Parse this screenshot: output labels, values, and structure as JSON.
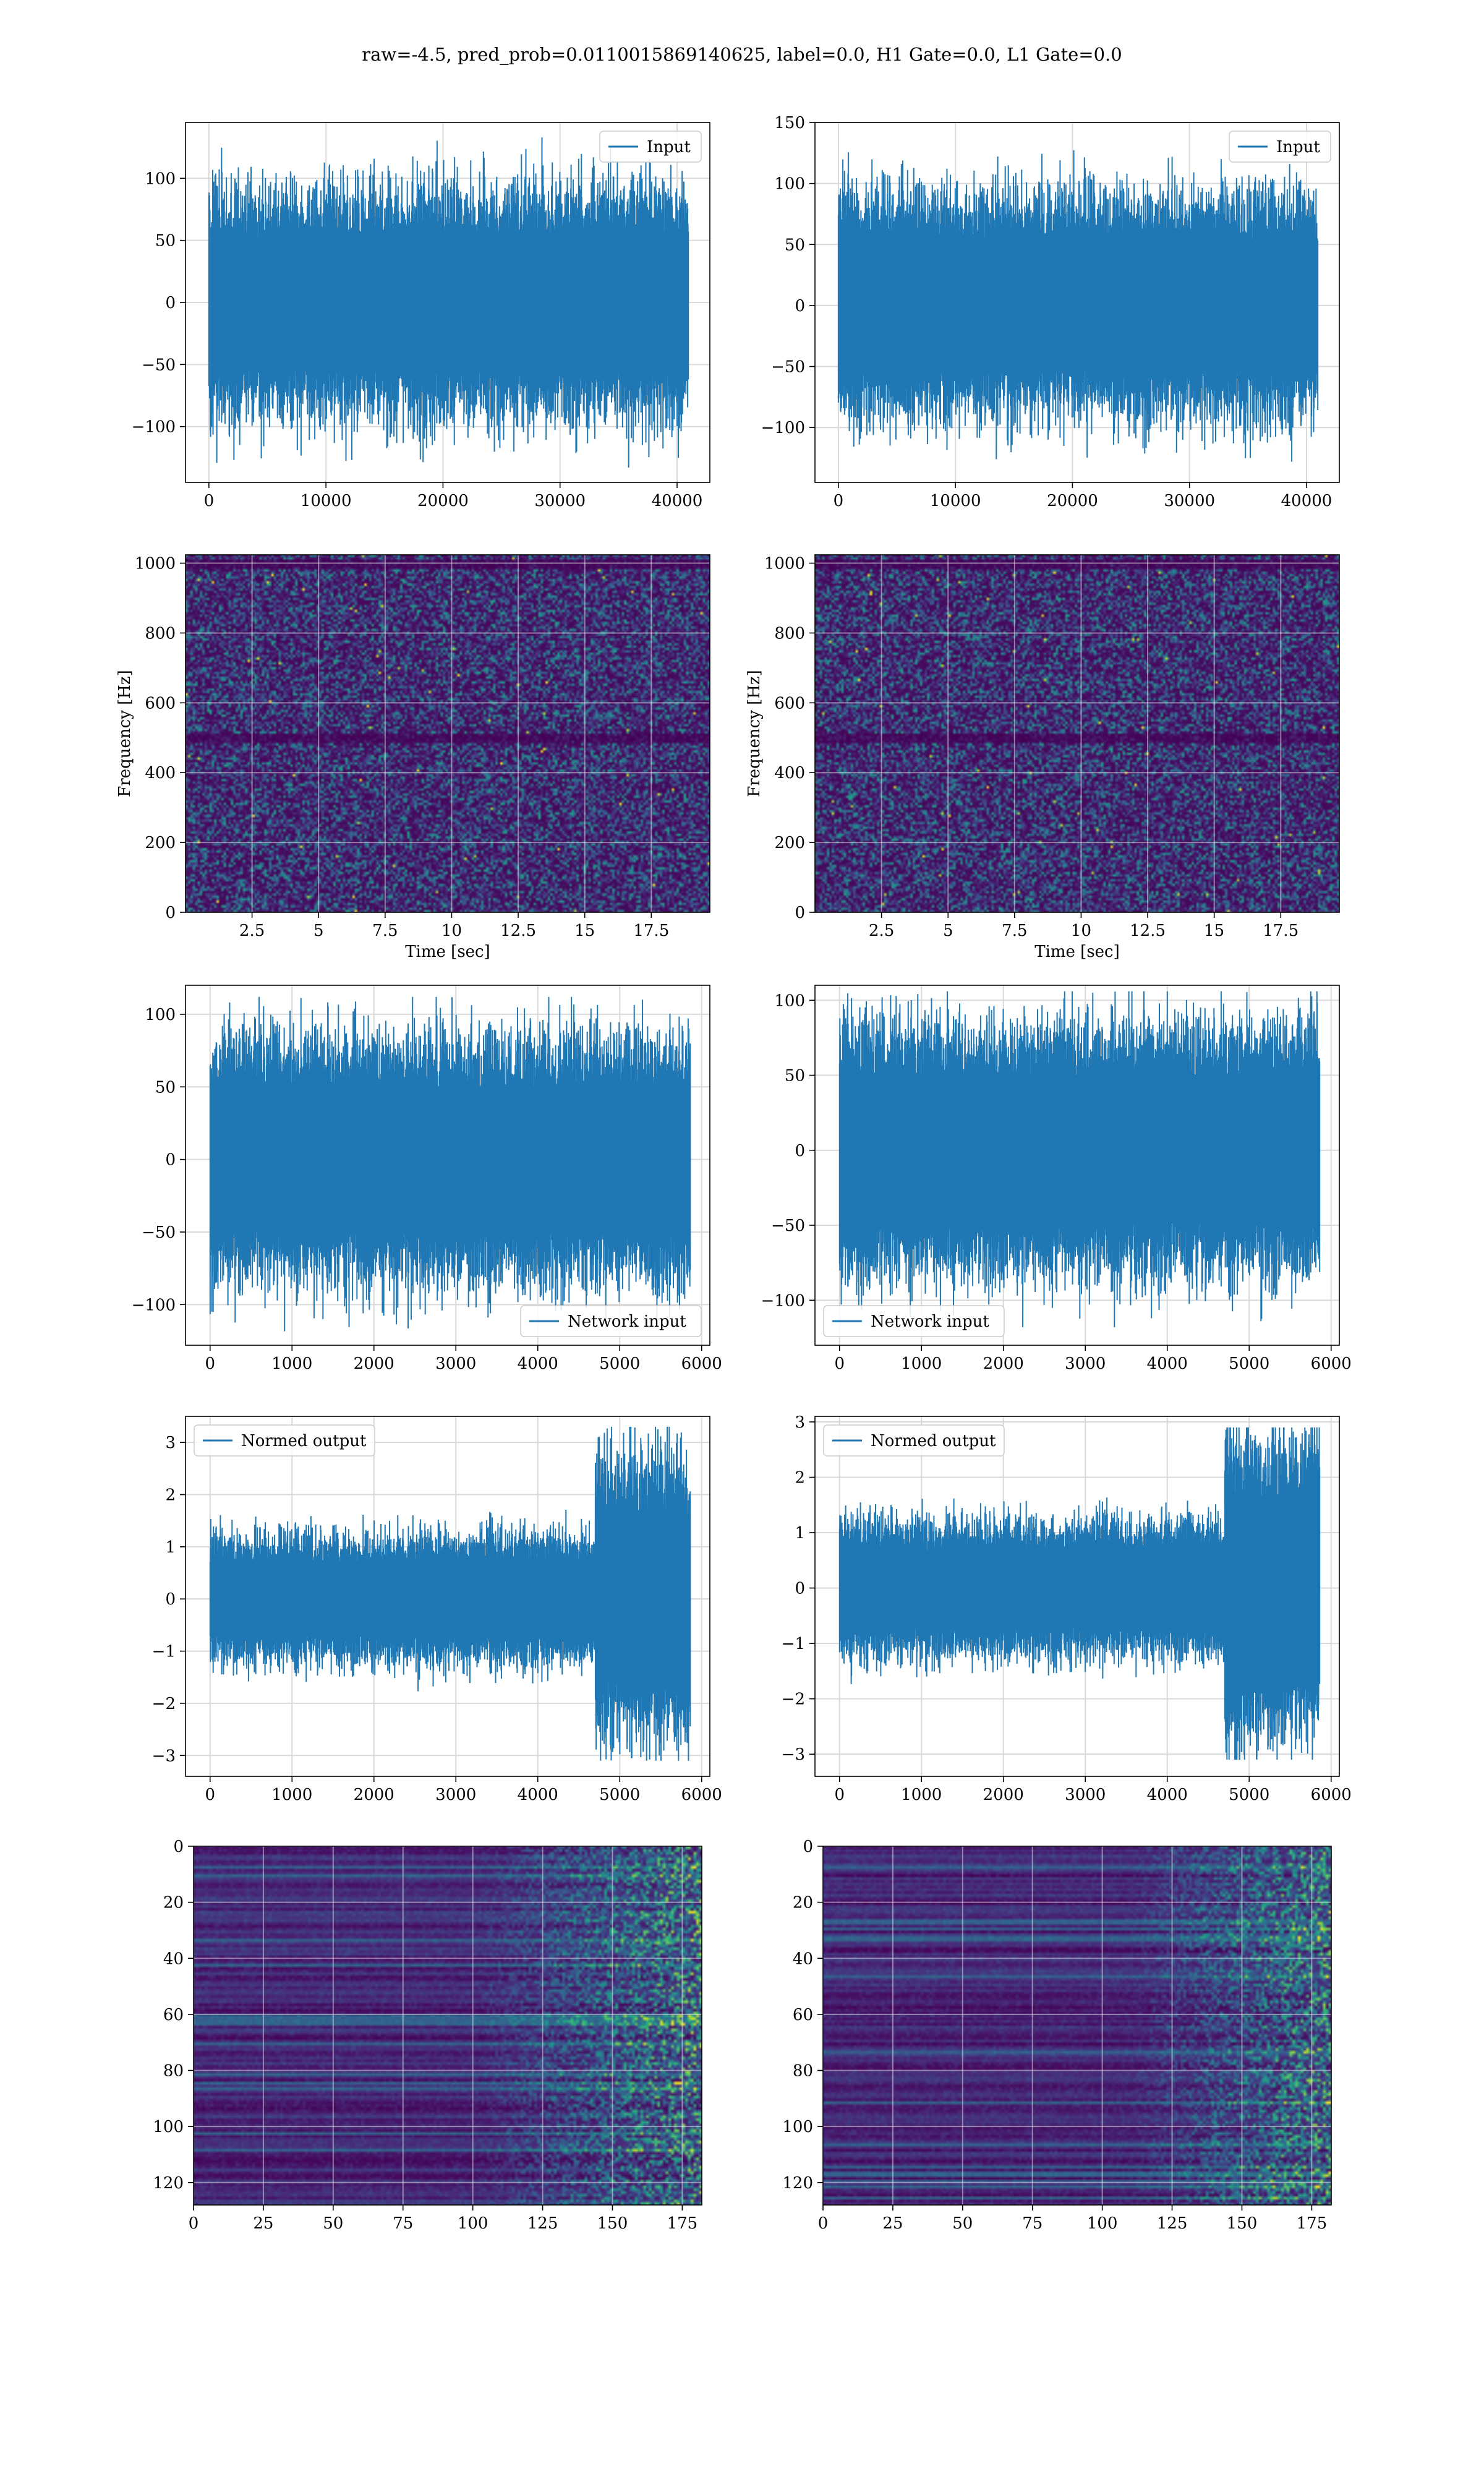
{
  "figure": {
    "suptitle": "raw=-4.5, pred_prob=0.0110015869140625, label=0.0, H1 Gate=0.0, L1 Gate=0.0"
  },
  "colors": {
    "line": "#1f77b4",
    "grid": "#d9d9d9",
    "axes_frame": "#000000",
    "viridis_dark": "#440154",
    "viridis_blue": "#31688e",
    "viridis_teal": "#35b779",
    "viridis_yellow": "#fde725"
  },
  "chart_data": [
    {
      "id": "input-h1",
      "type": "line",
      "legend": [
        "Input"
      ],
      "legend_loc": "upper right",
      "xlim": [
        -2000,
        42800
      ],
      "ylim": [
        -145,
        145
      ],
      "xticks": [
        0,
        10000,
        20000,
        30000,
        40000
      ],
      "yticks": [
        -100,
        -50,
        0,
        50,
        100
      ],
      "grid": true,
      "series": [
        {
          "name": "Input",
          "n_points": 40960,
          "x_range": [
            0,
            40960
          ],
          "envelope": {
            "typical": [
              -60,
              60
            ],
            "min": -133,
            "max": 133
          }
        }
      ]
    },
    {
      "id": "input-l1",
      "type": "line",
      "legend": [
        "Input"
      ],
      "legend_loc": "upper right",
      "xlim": [
        -2000,
        42800
      ],
      "ylim": [
        -145,
        150
      ],
      "xticks": [
        0,
        10000,
        20000,
        30000,
        40000
      ],
      "yticks": [
        -100,
        -50,
        0,
        50,
        100,
        150
      ],
      "grid": true,
      "series": [
        {
          "name": "Input",
          "n_points": 40960,
          "x_range": [
            0,
            40960
          ],
          "envelope": {
            "typical": [
              -60,
              60
            ],
            "min": -128,
            "max": 138
          }
        }
      ]
    },
    {
      "id": "spectrogram-h1",
      "type": "heatmap",
      "xlabel": "Time [sec]",
      "ylabel": "Frequency [Hz]",
      "xlim": [
        0,
        19.7
      ],
      "ylim": [
        0,
        1024
      ],
      "xticks": [
        2.5,
        5.0,
        7.5,
        10.0,
        12.5,
        15.0,
        17.5
      ],
      "yticks": [
        0,
        200,
        400,
        600,
        800,
        1000
      ],
      "colormap": "viridis",
      "grid": true,
      "dark_bands_hz": [
        500,
        1000
      ]
    },
    {
      "id": "spectrogram-l1",
      "type": "heatmap",
      "xlabel": "Time [sec]",
      "ylabel": "Frequency [Hz]",
      "xlim": [
        0,
        19.7
      ],
      "ylim": [
        0,
        1024
      ],
      "xticks": [
        2.5,
        5.0,
        7.5,
        10.0,
        12.5,
        15.0,
        17.5
      ],
      "yticks": [
        0,
        200,
        400,
        600,
        800,
        1000
      ],
      "colormap": "viridis",
      "grid": true,
      "dark_bands_hz": [
        500,
        1000
      ]
    },
    {
      "id": "network-input-h1",
      "type": "line",
      "legend": [
        "Network input"
      ],
      "legend_loc": "lower right",
      "xlim": [
        -300,
        6100
      ],
      "ylim": [
        -128,
        120
      ],
      "xticks": [
        0,
        1000,
        2000,
        3000,
        4000,
        5000,
        6000
      ],
      "yticks": [
        -100,
        -50,
        0,
        50,
        100
      ],
      "grid": true,
      "series": [
        {
          "name": "Network input",
          "n_points": 5860,
          "x_range": [
            0,
            5860
          ],
          "envelope": {
            "typical": [
              -55,
              55
            ],
            "min": -122,
            "max": 112
          }
        }
      ]
    },
    {
      "id": "network-input-l1",
      "type": "line",
      "legend": [
        "Network input"
      ],
      "legend_loc": "lower left",
      "xlim": [
        -300,
        6100
      ],
      "ylim": [
        -130,
        110
      ],
      "xticks": [
        0,
        1000,
        2000,
        3000,
        4000,
        5000,
        6000
      ],
      "yticks": [
        -100,
        -50,
        0,
        50,
        100
      ],
      "grid": true,
      "series": [
        {
          "name": "Network input",
          "n_points": 5860,
          "x_range": [
            0,
            5860
          ],
          "envelope": {
            "typical": [
              -55,
              55
            ],
            "min": -118,
            "max": 106
          }
        }
      ]
    },
    {
      "id": "normed-output-h1",
      "type": "line",
      "legend": [
        "Normed output"
      ],
      "legend_loc": "upper left",
      "xlim": [
        -300,
        6100
      ],
      "ylim": [
        -3.4,
        3.5
      ],
      "xticks": [
        0,
        1000,
        2000,
        3000,
        4000,
        5000,
        6000
      ],
      "yticks": [
        -3,
        -2,
        -1,
        0,
        1,
        2,
        3
      ],
      "grid": true,
      "series": [
        {
          "name": "Normed output",
          "n_points": 5860,
          "x_range": [
            0,
            5860
          ],
          "envelope": {
            "typical": [
              -0.8,
              0.8
            ],
            "late_segment_start": 4700,
            "late_typical": [
              -1.8,
              1.8
            ],
            "min": -3.1,
            "max": 3.3
          }
        }
      ]
    },
    {
      "id": "normed-output-l1",
      "type": "line",
      "legend": [
        "Normed output"
      ],
      "legend_loc": "upper left",
      "xlim": [
        -300,
        6100
      ],
      "ylim": [
        -3.4,
        3.1
      ],
      "xticks": [
        0,
        1000,
        2000,
        3000,
        4000,
        5000,
        6000
      ],
      "yticks": [
        -3,
        -2,
        -1,
        0,
        1,
        2,
        3
      ],
      "grid": true,
      "series": [
        {
          "name": "Normed output",
          "n_points": 5860,
          "x_range": [
            0,
            5860
          ],
          "envelope": {
            "typical": [
              -0.8,
              0.8
            ],
            "late_segment_start": 4700,
            "late_typical": [
              -1.8,
              1.8
            ],
            "min": -3.1,
            "max": 2.9
          }
        }
      ]
    },
    {
      "id": "features-h1",
      "type": "heatmap",
      "xlim": [
        0,
        182
      ],
      "ylim": [
        128,
        0
      ],
      "xticks": [
        0,
        25,
        50,
        75,
        100,
        125,
        150,
        175
      ],
      "yticks": [
        0,
        20,
        40,
        60,
        80,
        100,
        120
      ],
      "colormap": "viridis",
      "grid": true,
      "activity_rises_after": 100
    },
    {
      "id": "features-l1",
      "type": "heatmap",
      "xlim": [
        0,
        182
      ],
      "ylim": [
        128,
        0
      ],
      "xticks": [
        0,
        25,
        50,
        75,
        100,
        125,
        150,
        175
      ],
      "yticks": [
        0,
        20,
        40,
        60,
        80,
        100,
        120
      ],
      "colormap": "viridis",
      "grid": true,
      "activity_rises_after": 110
    }
  ]
}
